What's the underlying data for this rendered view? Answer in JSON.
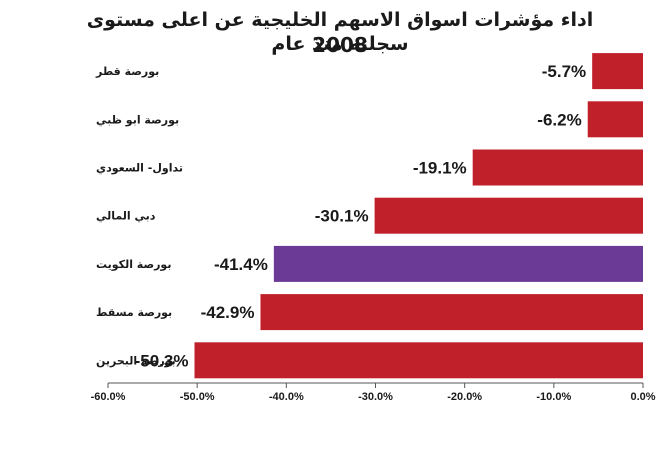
{
  "chart_data": {
    "type": "bar",
    "orientation": "horizontal",
    "title": "اداء مؤشرات اسواق الاسهم الخليجية عن اعلى مستوى سجلته منذ عام",
    "subtitle": "2008",
    "categories": [
      "بورصة قطر",
      "بورصة ابو ظبي",
      "تداول- السعودي",
      "دبي المالي",
      "بورصة الكويت",
      "بورصة مسقط",
      "بورصة البحرين"
    ],
    "values": [
      -5.7,
      -6.2,
      -19.1,
      -30.1,
      -41.4,
      -42.9,
      -50.3
    ],
    "value_labels": [
      "-5.7%",
      "-6.2%",
      "-19.1%",
      "-30.1%",
      "-41.4%",
      "-42.9%",
      "-50.3%"
    ],
    "colors": [
      "#c0202a",
      "#c0202a",
      "#c0202a",
      "#c0202a",
      "#6b3a96",
      "#c0202a",
      "#c0202a"
    ],
    "xlim": [
      -60,
      0
    ],
    "x_ticks": [
      -60,
      -50,
      -40,
      -30,
      -20,
      -10,
      0
    ],
    "x_tick_labels": [
      "-60.0%",
      "-50.0%",
      "-40.0%",
      "-30.0%",
      "-20.0%",
      "-10.0%",
      "0.0%"
    ],
    "grid": false,
    "legend": "none"
  }
}
